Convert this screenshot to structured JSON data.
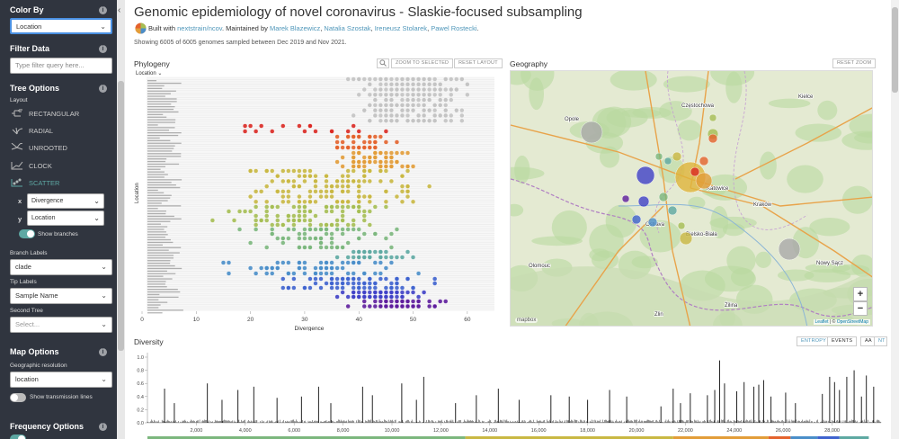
{
  "sidebar": {
    "color_by": {
      "title": "Color By",
      "value": "Location"
    },
    "filter": {
      "title": "Filter Data",
      "placeholder": "Type filter query here..."
    },
    "tree_options": {
      "title": "Tree Options",
      "layout_label": "Layout",
      "layouts": [
        "RECTANGULAR",
        "RADIAL",
        "UNROOTED",
        "CLOCK",
        "SCATTER"
      ],
      "active_layout": "SCATTER",
      "x_label": "x",
      "x_value": "Divergence",
      "y_label": "y",
      "y_value": "Location",
      "show_branches": "Show branches",
      "branch_labels_label": "Branch Labels",
      "branch_labels_value": "clade",
      "tip_labels_label": "Tip Labels",
      "tip_labels_value": "Sample Name",
      "second_tree_label": "Second Tree",
      "second_tree_placeholder": "Select..."
    },
    "map_options": {
      "title": "Map Options",
      "geo_res_label": "Geographic resolution",
      "geo_res_value": "location",
      "transmission": "Show transmission lines"
    },
    "freq_options": {
      "title": "Frequency Options"
    },
    "colors": {
      "bg": "#30353f",
      "accent": "#5da8a3",
      "toggle_on": "#5da8a3",
      "toggle_off": "#bbb"
    }
  },
  "header": {
    "title": "Genomic epidemiology of novel coronavirus - Slaskie-focused subsampling",
    "built_prefix": "Built with",
    "built_link": "nextstrain/ncov",
    "maintained_prefix": ". Maintained by",
    "maintainers": [
      "Marek Blazewicz",
      "Natalia Szostak",
      "Ireneusz Stolarek",
      "Pawel Rostecki"
    ],
    "showing": "Showing 6005 of 6005 genomes sampled between Dec 2019 and Nov 2021."
  },
  "phylogeny": {
    "title": "Phylogeny",
    "search_icon": "search-icon",
    "zoom_btn": "ZOOM TO SELECTED",
    "reset_btn": "RESET LAYOUT",
    "location_dropdown": "Location",
    "y_axis_label": "Location",
    "x_axis_label": "Divergence",
    "x_ticks": [
      "0",
      "10",
      "20",
      "30",
      "40",
      "50",
      "60"
    ]
  },
  "geography": {
    "title": "Geography",
    "reset_btn": "RESET ZOOM",
    "zoom_in": "+",
    "zoom_out": "−",
    "mapbox_logo": "mapbox",
    "attribution_leaflet": "Leaflet",
    "attribution_sep": " | © ",
    "attribution_osm": "OpenStreetMap",
    "place_labels": [
      "Kraków",
      "Częstochowa",
      "Kielce",
      "Opole",
      "Nowy Sącz",
      "Zlin",
      "Ostrava",
      "Bielsko-Biała",
      "Katowice",
      "Żilina",
      "Olomouc"
    ]
  },
  "diversity": {
    "title": "Diversity",
    "entropy_btn": "ENTROPY",
    "events_btn": "EVENTS",
    "aa_btn": "AA",
    "nt_btn": "NT",
    "y_ticks": [
      "1.0",
      "0.8",
      "0.6",
      "0.4",
      "0.2",
      "0.0"
    ],
    "x_ticks": [
      "2,000",
      "4,000",
      "6,000",
      "8,000",
      "10,000",
      "12,000",
      "14,000",
      "16,000",
      "18,000",
      "20,000",
      "22,000",
      "24,000",
      "26,000",
      "28,000"
    ]
  },
  "tree_colors": [
    "#5e1d9d",
    "#4041c7",
    "#3f63cf",
    "#4a8ec9",
    "#5ea9a2",
    "#7cb77e",
    "#a6be54",
    "#c9b843",
    "#e29d39",
    "#e4632d",
    "#db2823",
    "#c4c4c4"
  ]
}
